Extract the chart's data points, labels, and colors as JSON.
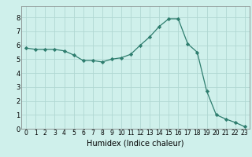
{
  "x": [
    0,
    1,
    2,
    3,
    4,
    5,
    6,
    7,
    8,
    9,
    10,
    11,
    12,
    13,
    14,
    15,
    16,
    17,
    18,
    19,
    20,
    21,
    22,
    23
  ],
  "y": [
    5.8,
    5.7,
    5.7,
    5.7,
    5.6,
    5.3,
    4.9,
    4.9,
    4.8,
    5.0,
    5.1,
    5.35,
    6.0,
    6.6,
    7.35,
    7.9,
    7.9,
    6.1,
    5.5,
    2.7,
    1.0,
    0.7,
    0.45,
    0.15
  ],
  "title": "",
  "xlabel": "Humidex (Indice chaleur)",
  "ylabel": "",
  "xlim": [
    -0.5,
    23.5
  ],
  "ylim": [
    0,
    8.8
  ],
  "yticks": [
    0,
    1,
    2,
    3,
    4,
    5,
    6,
    7,
    8
  ],
  "xticks": [
    0,
    1,
    2,
    3,
    4,
    5,
    6,
    7,
    8,
    9,
    10,
    11,
    12,
    13,
    14,
    15,
    16,
    17,
    18,
    19,
    20,
    21,
    22,
    23
  ],
  "line_color": "#2e7d6e",
  "marker_color": "#2e7d6e",
  "bg_color": "#cff0eb",
  "grid_color": "#b0d8d2",
  "tick_label_color": "#000000",
  "xlabel_color": "#000000",
  "tick_fontsize": 5.5,
  "xlabel_fontsize": 7.0
}
